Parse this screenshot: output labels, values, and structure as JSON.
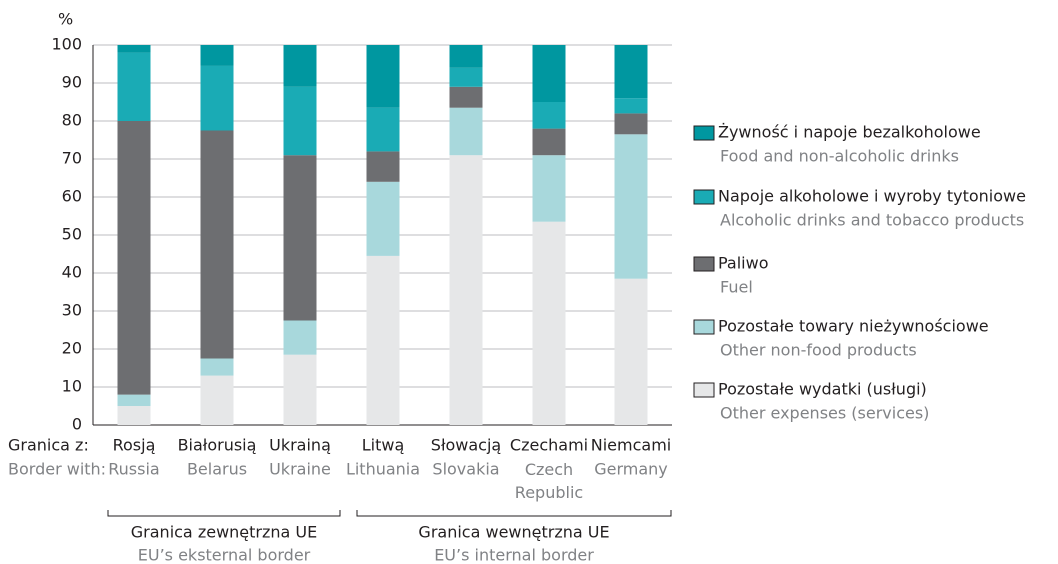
{
  "chart_data": {
    "type": "stacked_bar",
    "y_unit": "%",
    "x_label": "Granica z:",
    "x_label_en": "Border with:",
    "categories": [
      "Rosją",
      "Białorusią",
      "Ukrainą",
      "Litwą",
      "Słowacją",
      "Czechami",
      "Niemcami"
    ],
    "categories_en": [
      "Russia",
      "Belarus",
      "Ukraine",
      "Lithuania",
      "Slovakia",
      "Czech Republic",
      "Germany"
    ],
    "series": [
      {
        "name": "Pozostałe wydatki (usługi)",
        "name_en": "Other expenses (services)",
        "color": "#e6e7e8",
        "values": [
          5,
          13,
          18.5,
          44.5,
          71,
          53.5,
          38.5
        ]
      },
      {
        "name": "Pozostałe towary nieżywnościowe",
        "name_en": "Other non-food products",
        "color": "#a8d8dc",
        "values": [
          3,
          4.5,
          9,
          19.5,
          12.5,
          17.5,
          38
        ]
      },
      {
        "name": "Paliwo",
        "name_en": "Fuel",
        "color": "#6d6e71",
        "values": [
          72,
          60,
          43.5,
          8,
          5.5,
          7,
          5.5
        ]
      },
      {
        "name": "Napoje alkoholowe i wyroby tytoniowe",
        "name_en": "Alcoholic drinks and tobacco products",
        "color": "#1aabb5",
        "values": [
          18,
          17,
          18,
          11.5,
          5,
          7,
          4
        ]
      },
      {
        "name": "Żywność i napoje bezalkoholowe",
        "name_en": "Food and non-alcoholic drinks",
        "color": "#0097a0",
        "values": [
          2,
          5.5,
          11,
          16.5,
          6,
          15,
          14
        ]
      }
    ],
    "groups": [
      {
        "label": "Granica zewnętrzna UE",
        "label_en": "EU’s eksternal border",
        "range": [
          0,
          2
        ]
      },
      {
        "label": "Granica wewnętrzna UE",
        "label_en": "EU’s internal border",
        "range": [
          3,
          6
        ]
      }
    ],
    "ylim": [
      0,
      100
    ],
    "yticks": [
      0,
      10,
      20,
      30,
      40,
      50,
      60,
      70,
      80,
      90,
      100
    ],
    "grid": true
  }
}
